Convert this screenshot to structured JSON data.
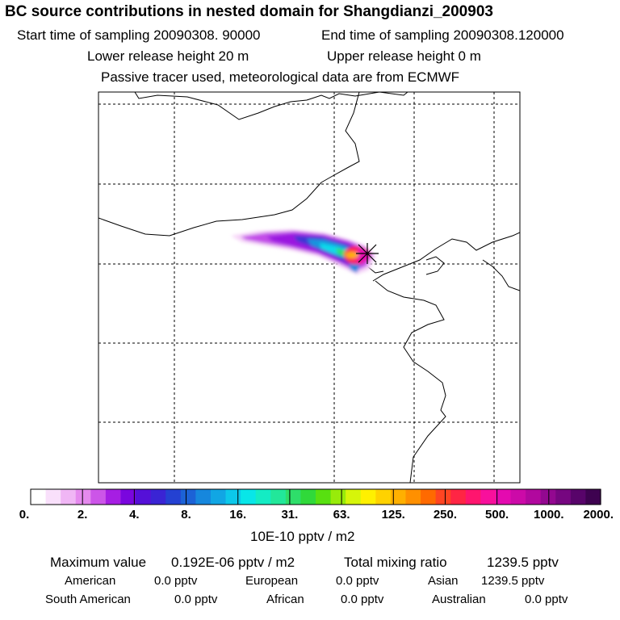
{
  "header": {
    "title": "BC  source contributions in nested domain for Shangdianzi_200903",
    "start_time_label": "Start time of sampling 20090308. 90000",
    "end_time_label": "End time of sampling 20090308.120000",
    "lower_height_label": "Lower release height   20 m",
    "upper_height_label": "Upper release height    0 m",
    "tracer_note": "Passive tracer used, meteorological data are from ECMWF"
  },
  "chart_data": {
    "type": "heatmap",
    "title": "BC  source contributions in nested domain for Shangdianzi_200903",
    "units": "10E-10 pptv / m2",
    "colorbar": {
      "tick_labels": [
        "0.",
        "2.",
        "4.",
        "8.",
        "16.",
        "31.",
        "63.",
        "125.",
        "250.",
        "500.",
        "1000.",
        "2000."
      ],
      "tick_values": [
        0,
        2,
        4,
        8,
        16,
        31,
        63,
        125,
        250,
        500,
        1000,
        2000
      ],
      "scale": "logarithmic",
      "colors": [
        "#ffffff",
        "#f9e0fb",
        "#f0b6f5",
        "#e58aee",
        "#cc55e8",
        "#a61ee3",
        "#7a06de",
        "#5510d8",
        "#3a24d4",
        "#2441d2",
        "#1c62d6",
        "#1687dd",
        "#11a6e4",
        "#0cc8ea",
        "#08e6e8",
        "#14ecc4",
        "#22e79a",
        "#2ede6a",
        "#30d93a",
        "#58e010",
        "#98eb0a",
        "#d6f50a",
        "#fff000",
        "#ffd200",
        "#ffb000",
        "#ff9000",
        "#ff6a00",
        "#ff4522",
        "#ff2544",
        "#ff156e",
        "#f8109c",
        "#e40ab0",
        "#cc0aa8",
        "#b1089e",
        "#930890",
        "#760680",
        "#58046a",
        "#3e0250"
      ]
    },
    "grid": true,
    "receptor_site": "Shangdianzi",
    "receptor_marker": "asterisk",
    "plume_extent": "westward plume from the receptor site",
    "max_value_label": "0.192E-06 pptv / m2"
  },
  "summary": {
    "max_label": "Maximum value",
    "max_value": "0.192E-06 pptv / m2",
    "total_label": "Total mixing ratio",
    "total_value": "1239.5 pptv",
    "regions": [
      {
        "name": "American",
        "value": "0.0 pptv"
      },
      {
        "name": "European",
        "value": "0.0 pptv"
      },
      {
        "name": "Asian",
        "value": "1239.5 pptv"
      },
      {
        "name": "South American",
        "value": "0.0 pptv"
      },
      {
        "name": "African",
        "value": "0.0 pptv"
      },
      {
        "name": "Australian",
        "value": "0.0 pptv"
      }
    ]
  }
}
